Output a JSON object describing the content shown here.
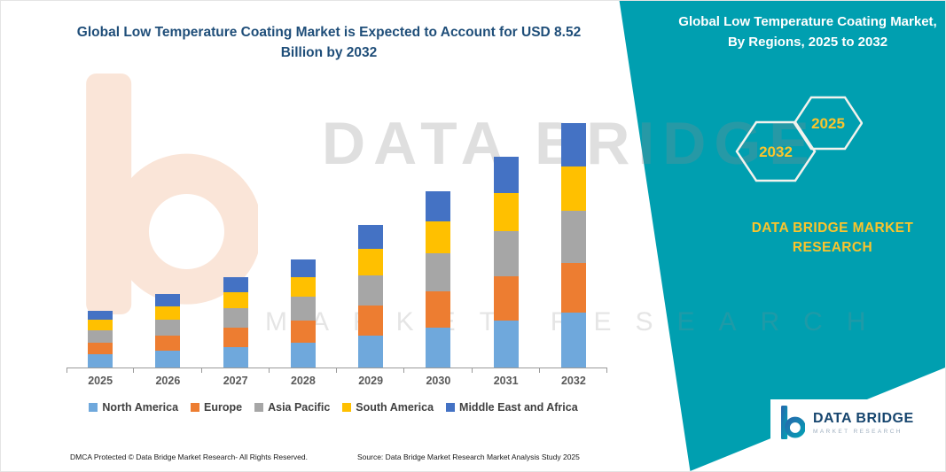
{
  "header": {
    "left_title": "Global Low Temperature Coating Market is Expected to Account for USD 8.52 Billion by 2032"
  },
  "right_panel": {
    "title": "Global Low Temperature Coating Market, By Regions, 2025 to 2032",
    "hexagons": [
      {
        "year": "2032"
      },
      {
        "year": "2025"
      }
    ],
    "brand": "DATA BRIDGE MARKET RESEARCH",
    "background_color": "#009FB0",
    "accent_color": "#FBC42C"
  },
  "watermark": {
    "line1": "DATA BRIDGE",
    "line2": "MARKET RESEARCH"
  },
  "chart_data": {
    "type": "bar",
    "stacked": true,
    "title": "Global Low Temperature Coating Market is Expected to Account for USD 8.52 Billion by 2032",
    "categories": [
      "2025",
      "2026",
      "2027",
      "2028",
      "2029",
      "2030",
      "2031",
      "2032"
    ],
    "series": [
      {
        "name": "North America",
        "color": "#6FA8DC",
        "values": [
          0.45,
          0.58,
          0.72,
          0.86,
          1.12,
          1.38,
          1.65,
          1.9
        ]
      },
      {
        "name": "Europe",
        "color": "#ED7D31",
        "values": [
          0.42,
          0.54,
          0.66,
          0.79,
          1.04,
          1.28,
          1.53,
          1.75
        ]
      },
      {
        "name": "Asia Pacific",
        "color": "#A6A6A6",
        "values": [
          0.43,
          0.55,
          0.68,
          0.81,
          1.06,
          1.31,
          1.57,
          1.8
        ]
      },
      {
        "name": "South America",
        "color": "#FFC000",
        "values": [
          0.35,
          0.46,
          0.57,
          0.68,
          0.9,
          1.12,
          1.34,
          1.55
        ]
      },
      {
        "name": "Middle East and Africa",
        "color": "#4472C4",
        "values": [
          0.32,
          0.42,
          0.52,
          0.63,
          0.84,
          1.05,
          1.26,
          1.52
        ]
      }
    ],
    "xlabel": "",
    "ylabel": "",
    "ylim": [
      0,
      9
    ],
    "grid": false,
    "legend_position": "bottom",
    "total_2032_usd_billion": 8.52
  },
  "footer": {
    "dmca": "DMCA Protected © Data Bridge Market Research-  All Rights Reserved.",
    "source": "Source: Data Bridge Market Research  Market Analysis Study 2025"
  },
  "logo": {
    "name": "DATA BRIDGE",
    "tagline": "MARKET RESEARCH"
  }
}
